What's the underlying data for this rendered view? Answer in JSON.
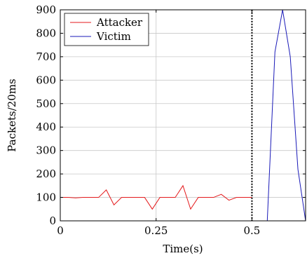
{
  "chart_data": {
    "type": "line",
    "title": "",
    "xlabel": "Time(s)",
    "ylabel": "Packets/20ms",
    "xlim": [
      0,
      0.64
    ],
    "ylim": [
      0,
      900
    ],
    "x_ticks": [
      0,
      0.25,
      0.5
    ],
    "x_tick_labels": [
      "0",
      "0.25",
      "0.5"
    ],
    "y_ticks": [
      0,
      100,
      200,
      300,
      400,
      500,
      600,
      700,
      800,
      900
    ],
    "y_tick_labels": [
      "0",
      "100",
      "200",
      "300",
      "400",
      "500",
      "600",
      "700",
      "800",
      "900"
    ],
    "grid": true,
    "legend_position": "top-left",
    "vertical_marker": {
      "x": 0.5,
      "style": "dotted",
      "color": "#000000"
    },
    "series": [
      {
        "name": "Attacker",
        "color": "#e41a1c",
        "x": [
          0,
          0.02,
          0.04,
          0.06,
          0.08,
          0.1,
          0.12,
          0.14,
          0.16,
          0.18,
          0.2,
          0.22,
          0.24,
          0.26,
          0.28,
          0.3,
          0.32,
          0.34,
          0.36,
          0.38,
          0.4,
          0.42,
          0.44,
          0.46,
          0.48,
          0.5
        ],
        "y": [
          100,
          100,
          98,
          100,
          100,
          100,
          132,
          68,
          100,
          100,
          100,
          100,
          50,
          100,
          100,
          100,
          150,
          50,
          100,
          100,
          100,
          113,
          88,
          100,
          100,
          100
        ]
      },
      {
        "name": "Victim",
        "color": "#1a1ab8",
        "x": [
          0.54,
          0.56,
          0.58,
          0.6,
          0.62,
          0.64
        ],
        "y": [
          0,
          720,
          900,
          700,
          220,
          0
        ]
      }
    ]
  }
}
